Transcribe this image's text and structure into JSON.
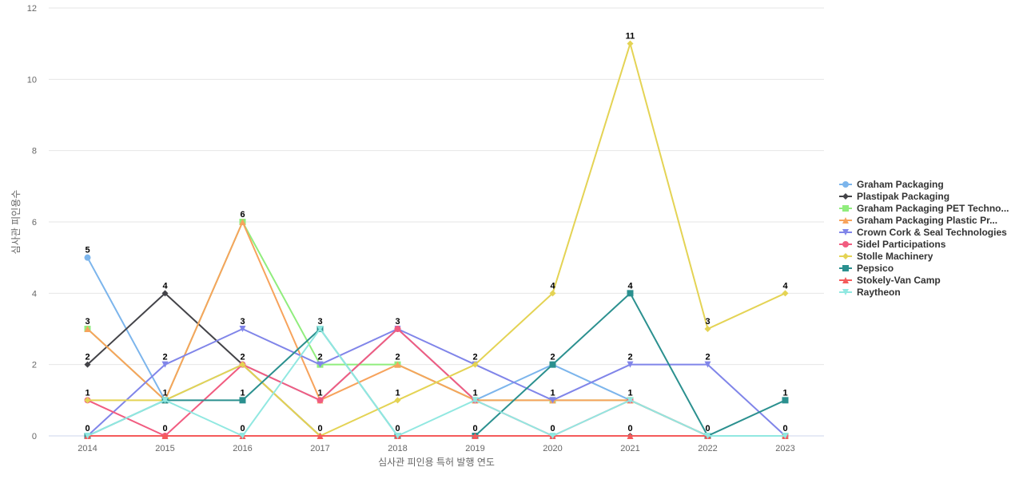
{
  "chart_data": {
    "type": "line",
    "title": "",
    "xlabel": "심사관 피인용 특허 발행 연도",
    "ylabel": "심사관 피인용수",
    "ylim": [
      0,
      12
    ],
    "yticks": [
      0,
      2,
      4,
      6,
      8,
      10,
      12
    ],
    "grid": true,
    "legend_position": "right",
    "categories": [
      "2014",
      "2015",
      "2016",
      "2017",
      "2018",
      "2019",
      "2020",
      "2021",
      "2022",
      "2023"
    ],
    "series": [
      {
        "name": "Graham Packaging",
        "legend_label": "Graham Packaging",
        "color": "#7cb5ec",
        "marker": "circle",
        "values": [
          5,
          1,
          2,
          1,
          3,
          1,
          2,
          1,
          0,
          0
        ]
      },
      {
        "name": "Plastipak Packaging",
        "legend_label": "Plastipak Packaging",
        "color": "#434348",
        "marker": "diamond",
        "values": [
          2,
          4,
          2,
          0,
          0,
          0,
          0,
          0,
          0,
          0
        ]
      },
      {
        "name": "Graham Packaging PET Techno...",
        "legend_label": "Graham Packaging PET Techno...",
        "color": "#90ed7d",
        "marker": "square",
        "values": [
          3,
          1,
          6,
          2,
          2,
          1,
          1,
          1,
          0,
          0
        ]
      },
      {
        "name": "Graham Packaging Plastic Pr...",
        "legend_label": "Graham Packaging Plastic Pr...",
        "color": "#f7a35c",
        "marker": "triangle",
        "values": [
          3,
          1,
          6,
          1,
          2,
          1,
          1,
          1,
          0,
          0
        ]
      },
      {
        "name": "Crown Cork & Seal Technologies",
        "legend_label": "Crown Cork & Seal Technologies",
        "color": "#8085e9",
        "marker": "triangle-down",
        "values": [
          0,
          2,
          3,
          2,
          3,
          2,
          1,
          2,
          2,
          0
        ]
      },
      {
        "name": "Sidel Participations",
        "legend_label": "Sidel Participations",
        "color": "#f15c80",
        "marker": "circle",
        "values": [
          1,
          0,
          2,
          1,
          3,
          1,
          0,
          1,
          0,
          0
        ]
      },
      {
        "name": "Stolle Machinery",
        "legend_label": "Stolle Machinery",
        "color": "#e4d354",
        "marker": "diamond",
        "values": [
          1,
          1,
          2,
          0,
          1,
          2,
          4,
          11,
          3,
          4
        ]
      },
      {
        "name": "Pepsico",
        "legend_label": "Pepsico",
        "color": "#2b908f",
        "marker": "square",
        "values": [
          0,
          1,
          1,
          3,
          0,
          0,
          2,
          4,
          0,
          1
        ]
      },
      {
        "name": "Stokely-Van Camp",
        "legend_label": "Stokely-Van Camp",
        "color": "#f45b5b",
        "marker": "triangle",
        "values": [
          0,
          0,
          0,
          0,
          0,
          0,
          0,
          0,
          0,
          0
        ]
      },
      {
        "name": "Raytheon",
        "legend_label": "Raytheon",
        "color": "#91e8e1",
        "marker": "triangle-down",
        "values": [
          0,
          1,
          0,
          3,
          0,
          1,
          0,
          1,
          0,
          0
        ]
      }
    ],
    "data_labels": [
      {
        "x": "2014",
        "y": 5,
        "text": "5"
      },
      {
        "x": "2014",
        "y": 3,
        "text": "3"
      },
      {
        "x": "2014",
        "y": 2,
        "text": "2"
      },
      {
        "x": "2014",
        "y": 1,
        "text": "1"
      },
      {
        "x": "2014",
        "y": 0,
        "text": "0"
      },
      {
        "x": "2015",
        "y": 4,
        "text": "4"
      },
      {
        "x": "2015",
        "y": 2,
        "text": "2"
      },
      {
        "x": "2015",
        "y": 1,
        "text": "1"
      },
      {
        "x": "2015",
        "y": 0,
        "text": "0"
      },
      {
        "x": "2016",
        "y": 6,
        "text": "6"
      },
      {
        "x": "2016",
        "y": 3,
        "text": "3"
      },
      {
        "x": "2016",
        "y": 2,
        "text": "2"
      },
      {
        "x": "2016",
        "y": 1,
        "text": "1"
      },
      {
        "x": "2016",
        "y": 0,
        "text": "0"
      },
      {
        "x": "2017",
        "y": 3,
        "text": "3"
      },
      {
        "x": "2017",
        "y": 2,
        "text": "2"
      },
      {
        "x": "2017",
        "y": 1,
        "text": "1"
      },
      {
        "x": "2017",
        "y": 0,
        "text": "0"
      },
      {
        "x": "2018",
        "y": 3,
        "text": "3"
      },
      {
        "x": "2018",
        "y": 2,
        "text": "2"
      },
      {
        "x": "2018",
        "y": 1,
        "text": "1"
      },
      {
        "x": "2018",
        "y": 0,
        "text": "0"
      },
      {
        "x": "2019",
        "y": 2,
        "text": "2"
      },
      {
        "x": "2019",
        "y": 1,
        "text": "1"
      },
      {
        "x": "2019",
        "y": 0,
        "text": "0"
      },
      {
        "x": "2020",
        "y": 4,
        "text": "4"
      },
      {
        "x": "2020",
        "y": 2,
        "text": "2"
      },
      {
        "x": "2020",
        "y": 1,
        "text": "1"
      },
      {
        "x": "2020",
        "y": 0,
        "text": "0"
      },
      {
        "x": "2021",
        "y": 11,
        "text": "11"
      },
      {
        "x": "2021",
        "y": 4,
        "text": "4"
      },
      {
        "x": "2021",
        "y": 2,
        "text": "2"
      },
      {
        "x": "2021",
        "y": 1,
        "text": "1"
      },
      {
        "x": "2021",
        "y": 0,
        "text": "0"
      },
      {
        "x": "2022",
        "y": 3,
        "text": "3"
      },
      {
        "x": "2022",
        "y": 2,
        "text": "2"
      },
      {
        "x": "2022",
        "y": 0,
        "text": "0"
      },
      {
        "x": "2023",
        "y": 4,
        "text": "4"
      },
      {
        "x": "2023",
        "y": 1,
        "text": "1"
      },
      {
        "x": "2023",
        "y": 0,
        "text": "0"
      }
    ]
  }
}
